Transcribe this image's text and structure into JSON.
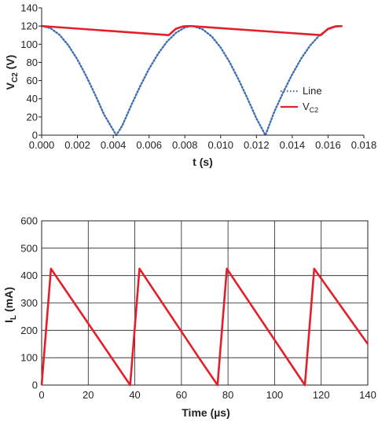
{
  "chart_data": [
    {
      "type": "line",
      "xlabel": "t (s)",
      "ylabel_main": "V",
      "ylabel_sub": "C2",
      "ylabel_unit": " (V)",
      "xlim": [
        0,
        0.018
      ],
      "ylim": [
        0,
        140
      ],
      "x_ticks": [
        "0.000",
        "0.002",
        "0.004",
        "0.006",
        "0.008",
        "0.010",
        "0.012",
        "0.014",
        "0.016",
        "0.018"
      ],
      "y_ticks": [
        "0",
        "20",
        "40",
        "60",
        "80",
        "100",
        "120",
        "140"
      ],
      "grid": false,
      "legend_position": "right",
      "series": [
        {
          "name": "Line",
          "style": "dotted",
          "color": "#3d6fb6",
          "points": [
            [
              0.0,
              120
            ],
            [
              0.0005,
              117.6
            ],
            [
              0.001,
              110.3
            ],
            [
              0.0015,
              98.6
            ],
            [
              0.002,
              83.1
            ],
            [
              0.0025,
              64.6
            ],
            [
              0.003,
              44.0
            ],
            [
              0.0035,
              22.2
            ],
            [
              0.00417,
              0
            ],
            [
              0.0045,
              10.3
            ],
            [
              0.005,
              32.6
            ],
            [
              0.0055,
              53.7
            ],
            [
              0.006,
              72.9
            ],
            [
              0.0065,
              89.4
            ],
            [
              0.007,
              102.8
            ],
            [
              0.0075,
              112.5
            ],
            [
              0.008,
              118.4
            ],
            [
              0.00833,
              120
            ],
            [
              0.0085,
              119.7
            ],
            [
              0.009,
              116.3
            ],
            [
              0.0095,
              108.6
            ],
            [
              0.01,
              96.4
            ],
            [
              0.0105,
              80.3
            ],
            [
              0.011,
              61.2
            ],
            [
              0.0115,
              40.3
            ],
            [
              0.012,
              18.4
            ],
            [
              0.0125,
              0
            ],
            [
              0.013,
              25.9
            ],
            [
              0.0135,
              47.3
            ],
            [
              0.014,
              67.0
            ],
            [
              0.0145,
              84.3
            ],
            [
              0.015,
              98.6
            ],
            [
              0.0155,
              109.4
            ],
            [
              0.016,
              116.5
            ],
            [
              0.0165,
              119.9
            ],
            [
              0.0167,
              120
            ]
          ]
        },
        {
          "name_main": "V",
          "name_sub": "C2",
          "style": "solid",
          "color": "#e3202a",
          "points": [
            [
              0.0,
              120
            ],
            [
              0.0071,
              110
            ],
            [
              0.0075,
              117
            ],
            [
              0.0079,
              119.6
            ],
            [
              0.0083,
              120
            ],
            [
              0.0156,
              110
            ],
            [
              0.016,
              117
            ],
            [
              0.0164,
              119.6
            ],
            [
              0.0168,
              120
            ]
          ]
        }
      ]
    },
    {
      "type": "line",
      "xlabel": "Time (µs)",
      "ylabel_main": "I",
      "ylabel_sub": "L",
      "ylabel_unit": " (mA)",
      "xlim": [
        0,
        140
      ],
      "ylim": [
        0,
        600
      ],
      "x_ticks": [
        "0",
        "20",
        "40",
        "60",
        "80",
        "100",
        "120",
        "140"
      ],
      "y_ticks": [
        "0",
        "100",
        "200",
        "300",
        "400",
        "500",
        "600"
      ],
      "grid": true,
      "series": [
        {
          "style": "solid",
          "color": "#e3202a",
          "points": [
            [
              0,
              0
            ],
            [
              4,
              425
            ],
            [
              38,
              0
            ],
            [
              42,
              425
            ],
            [
              67.5,
              100
            ],
            [
              75.5,
              0
            ],
            [
              79.5,
              425
            ],
            [
              113,
              0
            ],
            [
              117,
              425
            ],
            [
              140,
              150
            ]
          ]
        }
      ]
    }
  ]
}
